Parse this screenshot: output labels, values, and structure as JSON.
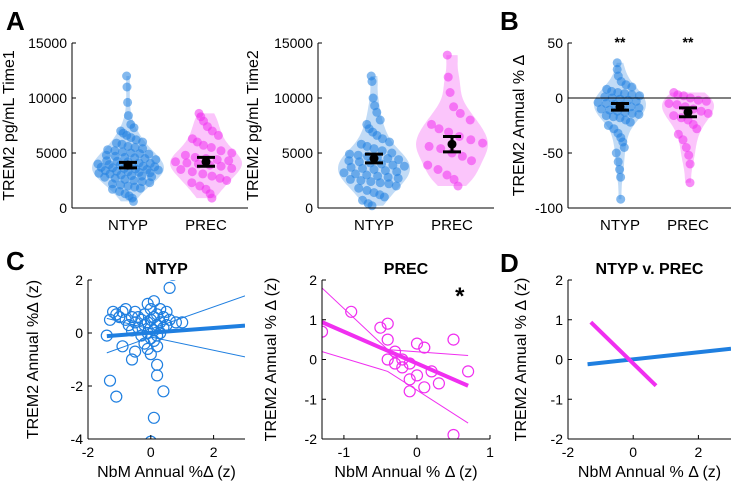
{
  "panel_letters": [
    "A",
    "B",
    "C",
    "D"
  ],
  "colors": {
    "ntyp": "#1f7fe0",
    "prec": "#f02ff0",
    "summary": "#000000"
  },
  "chart_data": [
    {
      "id": "A1",
      "type": "scatter",
      "ylabel": "TREM2 pg/mL Time1",
      "categories": [
        "NTYP",
        "PREC"
      ],
      "ylim": [
        0,
        15000
      ],
      "yticks": [
        "0",
        "5000",
        "10000",
        "15000"
      ],
      "series": [
        {
          "category": "NTYP",
          "mean": 3900,
          "ci": [
            3650,
            4150
          ],
          "min": 600,
          "max": 12000,
          "values": [
            12000,
            11000,
            9600,
            8400,
            7600,
            7300,
            7000,
            6800,
            6600,
            6400,
            6200,
            6000,
            5900,
            5800,
            5600,
            5500,
            5400,
            5300,
            5200,
            5100,
            5000,
            4950,
            4900,
            4800,
            4700,
            4600,
            4550,
            4500,
            4400,
            4300,
            4250,
            4200,
            4100,
            4050,
            4000,
            3950,
            3900,
            3850,
            3800,
            3750,
            3700,
            3650,
            3600,
            3550,
            3500,
            3450,
            3400,
            3350,
            3300,
            3250,
            3200,
            3150,
            3100,
            3000,
            2950,
            2900,
            2850,
            2800,
            2700,
            2600,
            2500,
            2400,
            2300,
            2200,
            2100,
            2000,
            1900,
            1800,
            1700,
            1500,
            1300,
            1100,
            900,
            600
          ]
        },
        {
          "category": "PREC",
          "mean": 4200,
          "ci": [
            3800,
            4600
          ],
          "min": 900,
          "max": 8600,
          "values": [
            8600,
            8300,
            7900,
            7400,
            7000,
            6600,
            6300,
            6000,
            5700,
            5500,
            5200,
            5000,
            4800,
            4600,
            4500,
            4400,
            4300,
            4200,
            4100,
            4000,
            3900,
            3800,
            3600,
            3500,
            3300,
            3100,
            2900,
            2700,
            2500,
            2300,
            2000,
            1700,
            1300,
            900
          ]
        }
      ]
    },
    {
      "id": "A2",
      "type": "scatter",
      "ylabel": "TREM2 pg/mL Time2",
      "categories": [
        "NTYP",
        "PREC"
      ],
      "ylim": [
        0,
        15000
      ],
      "yticks": [
        "0",
        "5000",
        "10000",
        "15000"
      ],
      "series": [
        {
          "category": "NTYP",
          "mean": 4500,
          "ci": [
            4100,
            4900
          ],
          "min": 200,
          "max": 12000,
          "values": [
            12000,
            11500,
            10000,
            9300,
            8700,
            8000,
            7600,
            7200,
            6900,
            6600,
            6300,
            6000,
            5800,
            5600,
            5400,
            5200,
            5000,
            4900,
            4800,
            4700,
            4600,
            4500,
            4400,
            4300,
            4200,
            4100,
            4000,
            3900,
            3800,
            3700,
            3600,
            3500,
            3400,
            3300,
            3200,
            3100,
            3000,
            2900,
            2800,
            2700,
            2600,
            2500,
            2400,
            2300,
            2200,
            2000,
            1800,
            1600,
            1400,
            1200,
            1000,
            700,
            400,
            200
          ]
        },
        {
          "category": "PREC",
          "mean": 5800,
          "ci": [
            5100,
            6500
          ],
          "min": 2000,
          "max": 13900,
          "values": [
            13900,
            11900,
            10500,
            9200,
            8600,
            8000,
            7600,
            7200,
            6900,
            6500,
            6200,
            5900,
            5600,
            5400,
            5000,
            4700,
            4300,
            3900,
            3500,
            3000,
            2600,
            2000
          ]
        }
      ]
    },
    {
      "id": "B",
      "type": "scatter",
      "ylabel": "TREM2 Annual % Δ",
      "categories": [
        "NTYP",
        "PREC"
      ],
      "ylim": [
        -100,
        50
      ],
      "yticks": [
        "-100",
        "-50",
        "0",
        "50"
      ],
      "reference_line": 0,
      "significance": [
        "**",
        "**"
      ],
      "series": [
        {
          "category": "NTYP",
          "mean": -8,
          "ci": [
            -11,
            -5
          ],
          "min": -92,
          "max": 32,
          "values": [
            32,
            26,
            20,
            15,
            12,
            10,
            8,
            6,
            5,
            4,
            3,
            2,
            1,
            0,
            -1,
            -2,
            -3,
            -4,
            -5,
            -6,
            -7,
            -8,
            -9,
            -10,
            -11,
            -12,
            -13,
            -14,
            -15,
            -16,
            -17,
            -18,
            -20,
            -22,
            -25,
            -28,
            -32,
            -36,
            -40,
            -45,
            -50,
            -58,
            -65,
            -72,
            -92
          ]
        },
        {
          "category": "PREC",
          "mean": -13,
          "ci": [
            -17,
            -9
          ],
          "min": -77,
          "max": 5,
          "values": [
            5,
            3,
            2,
            0,
            -2,
            -3,
            -5,
            -6,
            -8,
            -10,
            -12,
            -14,
            -16,
            -18,
            -20,
            -24,
            -28,
            -33,
            -38,
            -45,
            -52,
            -60,
            -77
          ]
        }
      ]
    },
    {
      "id": "C1",
      "type": "scatter",
      "title": "NTYP",
      "xlabel": "NbM Annual %Δ (z)",
      "ylabel": "TREM2 Annual %Δ (z)",
      "xlim": [
        -2,
        3
      ],
      "ylim": [
        -4,
        2
      ],
      "xticks": [
        "-2",
        "0",
        "2"
      ],
      "yticks": [
        "-4",
        "-2",
        "0",
        "2"
      ],
      "fit": {
        "slope": 0.09,
        "intercept": 0.01,
        "x_range": [
          -1.4,
          3
        ]
      },
      "ci_band": {
        "upper": [
          [
            -1.4,
            0.55
          ],
          [
            0,
            0.15
          ],
          [
            3,
            1.4
          ]
        ],
        "lower": [
          [
            -1.4,
            -0.75
          ],
          [
            0,
            -0.15
          ],
          [
            3,
            -0.9
          ]
        ]
      },
      "points": [
        [
          -1.3,
          0.5
        ],
        [
          -1.2,
          0.8
        ],
        [
          -1.1,
          0.7
        ],
        [
          -1.0,
          0.6
        ],
        [
          -0.9,
          0.8
        ],
        [
          -0.8,
          0.5
        ],
        [
          -0.8,
          0.9
        ],
        [
          -0.7,
          0.3
        ],
        [
          -0.6,
          0.6
        ],
        [
          -0.6,
          0.1
        ],
        [
          -0.5,
          0.4
        ],
        [
          -0.5,
          0.8
        ],
        [
          -0.4,
          0.6
        ],
        [
          -0.4,
          0.2
        ],
        [
          -0.3,
          0.5
        ],
        [
          -0.3,
          -0.1
        ],
        [
          -0.2,
          0.7
        ],
        [
          -0.2,
          0.3
        ],
        [
          -0.2,
          -0.4
        ],
        [
          -0.1,
          1.1
        ],
        [
          -0.1,
          0.4
        ],
        [
          -0.1,
          0.0
        ],
        [
          -0.1,
          -0.6
        ],
        [
          0.0,
          0.9
        ],
        [
          0.0,
          0.5
        ],
        [
          0.0,
          0.2
        ],
        [
          0.0,
          -0.2
        ],
        [
          0.0,
          -0.8
        ],
        [
          0.1,
          1.2
        ],
        [
          0.1,
          0.6
        ],
        [
          0.1,
          0.1
        ],
        [
          0.1,
          -0.3
        ],
        [
          0.2,
          0.7
        ],
        [
          0.2,
          0.3
        ],
        [
          0.2,
          -0.1
        ],
        [
          0.2,
          -0.5
        ],
        [
          0.3,
          0.9
        ],
        [
          0.3,
          0.4
        ],
        [
          0.3,
          0.0
        ],
        [
          0.4,
          0.6
        ],
        [
          0.4,
          0.2
        ],
        [
          0.5,
          0.8
        ],
        [
          0.5,
          0.3
        ],
        [
          0.6,
          0.5
        ],
        [
          0.6,
          1.7
        ],
        [
          0.7,
          2.2
        ],
        [
          0.8,
          0.4
        ],
        [
          1.0,
          0.4
        ],
        [
          -1.4,
          -0.1
        ],
        [
          -1.3,
          -1.8
        ],
        [
          -1.1,
          -2.4
        ],
        [
          -0.9,
          -0.5
        ],
        [
          0.2,
          -1.2
        ],
        [
          0.2,
          -1.6
        ],
        [
          0.4,
          -2.2
        ],
        [
          0.1,
          -3.2
        ],
        [
          0.0,
          -4.1
        ],
        [
          -0.5,
          -0.7
        ],
        [
          -0.6,
          -1.0
        ]
      ]
    },
    {
      "id": "C2",
      "type": "scatter",
      "title": "PREC",
      "xlabel": "NbM Annual % Δ (z)",
      "ylabel": "TREM2 Annual % Δ (z)",
      "xlim": [
        -1.3,
        1
      ],
      "ylim": [
        -2,
        2
      ],
      "xticks": [
        "-1",
        "0",
        "1"
      ],
      "yticks": [
        "-2",
        "-1",
        "0",
        "1",
        "2"
      ],
      "significance": "*",
      "fit": {
        "slope": -0.8,
        "intercept": -0.1,
        "x_range": [
          -1.3,
          0.7
        ]
      },
      "ci_band": {
        "upper": [
          [
            -1.3,
            1.8
          ],
          [
            -0.4,
            0.25
          ],
          [
            0.7,
            0.1
          ]
        ],
        "lower": [
          [
            -1.3,
            0.2
          ],
          [
            -0.4,
            -0.3
          ],
          [
            0.7,
            -1.6
          ]
        ]
      },
      "points": [
        [
          -1.3,
          0.7
        ],
        [
          -0.9,
          1.2
        ],
        [
          -0.5,
          0.8
        ],
        [
          -0.4,
          0.9
        ],
        [
          -0.4,
          0.5
        ],
        [
          -0.4,
          0.0
        ],
        [
          -0.3,
          0.2
        ],
        [
          -0.3,
          -0.1
        ],
        [
          -0.2,
          0.0
        ],
        [
          -0.2,
          -0.2
        ],
        [
          -0.1,
          -0.1
        ],
        [
          -0.1,
          -0.5
        ],
        [
          -0.1,
          -0.8
        ],
        [
          0.0,
          0.4
        ],
        [
          0.0,
          -0.4
        ],
        [
          0.1,
          0.3
        ],
        [
          0.1,
          -0.7
        ],
        [
          0.2,
          -0.3
        ],
        [
          0.3,
          -0.6
        ],
        [
          0.5,
          0.5
        ],
        [
          0.5,
          -1.9
        ],
        [
          0.7,
          -0.3
        ]
      ]
    },
    {
      "id": "D",
      "type": "line",
      "title": "NTYP v. PREC",
      "xlabel": "NbM Annual % Δ (z)",
      "ylabel": "TREM2 Annual % Δ (z)",
      "xlim": [
        -2,
        3
      ],
      "ylim": [
        -2,
        2
      ],
      "xticks": [
        "-2",
        "0",
        "2"
      ],
      "yticks": [
        "-2",
        "-1",
        "0",
        "1",
        "2"
      ],
      "series": [
        {
          "group": "NTYP",
          "x": [
            -1.4,
            3
          ],
          "y": [
            -0.12,
            0.27
          ]
        },
        {
          "group": "PREC",
          "x": [
            -1.3,
            0.7
          ],
          "y": [
            0.94,
            -0.66
          ]
        }
      ]
    }
  ]
}
